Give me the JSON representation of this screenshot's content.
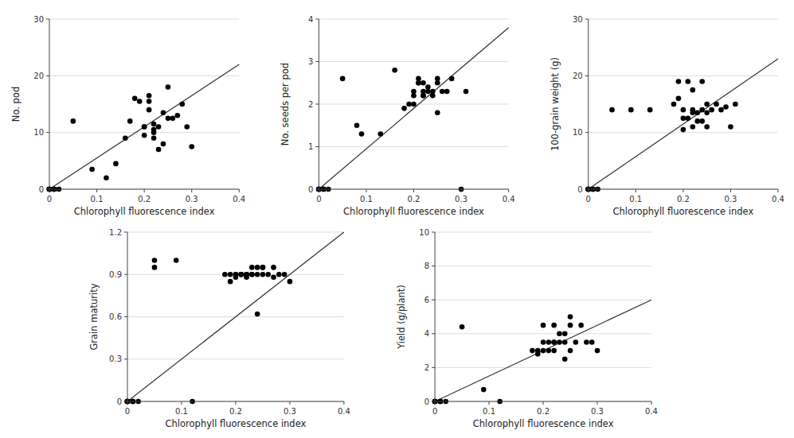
{
  "chart_data": [
    {
      "type": "scatter",
      "xlabel": "Chlorophyll fluorescence index",
      "ylabel": "No. pod",
      "xlim": [
        0,
        0.4
      ],
      "xticks": [
        0,
        0.1,
        0.2,
        0.3,
        0.4
      ],
      "ylim": [
        0,
        30
      ],
      "yticks": [
        0,
        10,
        20,
        30
      ],
      "grid": "y",
      "series": [
        {
          "type": "scatter",
          "color": "#000000",
          "x": [
            0.0,
            0.0,
            0.0,
            0.0,
            0.0,
            0.0,
            0.0,
            0.01,
            0.01,
            0.01,
            0.02,
            0.05,
            0.09,
            0.12,
            0.14,
            0.16,
            0.17,
            0.18,
            0.19,
            0.2,
            0.2,
            0.2,
            0.21,
            0.21,
            0.21,
            0.22,
            0.22,
            0.22,
            0.22,
            0.23,
            0.23,
            0.24,
            0.24,
            0.25,
            0.25,
            0.26,
            0.27,
            0.28,
            0.29,
            0.3
          ],
          "values": [
            0,
            0,
            0,
            0,
            0,
            0,
            0,
            0,
            0,
            0,
            0,
            12,
            3.5,
            2.0,
            4.5,
            9.0,
            12.0,
            16.0,
            15.5,
            11.0,
            11.0,
            9.5,
            14.0,
            15.5,
            16.5,
            10.5,
            10.0,
            11.5,
            9.0,
            11.0,
            7.0,
            8.0,
            13.5,
            18.0,
            12.5,
            12.5,
            13.0,
            15.0,
            11.0,
            7.5
          ]
        },
        {
          "type": "line",
          "color": "#333333",
          "x": [
            0,
            0.4
          ],
          "values": [
            0,
            22
          ]
        }
      ]
    },
    {
      "type": "scatter",
      "xlabel": "Chlorophyll fluorescence index",
      "ylabel": "No. seeds per pod",
      "xlim": [
        0,
        0.4
      ],
      "xticks": [
        0,
        0.1,
        0.2,
        0.3,
        0.4
      ],
      "ylim": [
        0,
        4.0
      ],
      "yticks": [
        0,
        1,
        2,
        3,
        4
      ],
      "grid": "y",
      "series": [
        {
          "type": "scatter",
          "color": "#000000",
          "x": [
            0.0,
            0.0,
            0.0,
            0.0,
            0.0,
            0.0,
            0.0,
            0.01,
            0.01,
            0.01,
            0.02,
            0.05,
            0.08,
            0.09,
            0.13,
            0.16,
            0.18,
            0.19,
            0.2,
            0.2,
            0.2,
            0.21,
            0.21,
            0.21,
            0.22,
            0.22,
            0.22,
            0.22,
            0.23,
            0.23,
            0.24,
            0.24,
            0.25,
            0.25,
            0.25,
            0.26,
            0.27,
            0.28,
            0.3,
            0.31
          ],
          "values": [
            0,
            0,
            0,
            0,
            0,
            0,
            0,
            0,
            0,
            0,
            0,
            2.6,
            1.5,
            1.3,
            1.3,
            2.8,
            1.9,
            2.0,
            2.3,
            2.2,
            2.0,
            2.5,
            2.6,
            2.5,
            2.2,
            2.5,
            2.3,
            2.2,
            2.3,
            2.4,
            2.3,
            2.2,
            2.5,
            2.6,
            1.8,
            2.3,
            2.3,
            2.6,
            0.0,
            2.3
          ]
        },
        {
          "type": "line",
          "color": "#333333",
          "x": [
            0,
            0.4
          ],
          "values": [
            0,
            3.8
          ]
        }
      ]
    },
    {
      "type": "scatter",
      "xlabel": "Chlorophyll fluorescence index",
      "ylabel": "100-grain weight (g)",
      "xlim": [
        0,
        0.4
      ],
      "xticks": [
        0,
        0.1,
        0.2,
        0.3,
        0.4
      ],
      "ylim": [
        0,
        30
      ],
      "yticks": [
        0,
        10,
        20,
        30
      ],
      "grid": "y",
      "series": [
        {
          "type": "scatter",
          "color": "#000000",
          "x": [
            0.0,
            0.0,
            0.0,
            0.0,
            0.0,
            0.0,
            0.0,
            0.01,
            0.01,
            0.01,
            0.02,
            0.05,
            0.09,
            0.13,
            0.18,
            0.19,
            0.19,
            0.2,
            0.2,
            0.2,
            0.21,
            0.21,
            0.22,
            0.22,
            0.22,
            0.22,
            0.23,
            0.23,
            0.24,
            0.24,
            0.24,
            0.25,
            0.25,
            0.25,
            0.26,
            0.27,
            0.28,
            0.29,
            0.3,
            0.31
          ],
          "values": [
            0,
            0,
            0,
            0,
            0,
            0,
            0,
            0,
            0,
            0,
            0,
            14,
            14,
            14,
            15.0,
            19.0,
            16.0,
            10.5,
            12.5,
            14.0,
            12.5,
            19.0,
            14.0,
            11.0,
            13.5,
            17.5,
            13.5,
            12.0,
            14.0,
            12.0,
            19.0,
            13.5,
            11.0,
            15.0,
            14.0,
            15.0,
            14.0,
            14.5,
            11.0,
            15.0
          ]
        },
        {
          "type": "line",
          "color": "#333333",
          "x": [
            0,
            0.4
          ],
          "values": [
            0,
            23
          ]
        }
      ]
    },
    {
      "type": "scatter",
      "xlabel": "Chlorophyll fluorescence index",
      "ylabel": "Grain maturity",
      "xlim": [
        0,
        0.4
      ],
      "xticks": [
        0,
        0.1,
        0.2,
        0.3,
        0.4
      ],
      "ylim": [
        0,
        1.2
      ],
      "yticks": [
        0,
        0.3,
        0.6,
        0.9,
        1.2
      ],
      "grid": "y",
      "series": [
        {
          "type": "scatter",
          "color": "#000000",
          "x": [
            0.0,
            0.0,
            0.0,
            0.0,
            0.0,
            0.0,
            0.0,
            0.01,
            0.01,
            0.01,
            0.02,
            0.05,
            0.05,
            0.09,
            0.12,
            0.18,
            0.19,
            0.19,
            0.2,
            0.2,
            0.2,
            0.21,
            0.21,
            0.21,
            0.22,
            0.22,
            0.22,
            0.22,
            0.23,
            0.23,
            0.23,
            0.24,
            0.24,
            0.24,
            0.25,
            0.25,
            0.25,
            0.26,
            0.27,
            0.27,
            0.28,
            0.29,
            0.3
          ],
          "values": [
            0,
            0,
            0,
            0,
            0,
            0,
            0,
            0,
            0,
            0,
            0,
            1.0,
            0.95,
            1.0,
            0.0,
            0.9,
            0.9,
            0.85,
            0.9,
            0.9,
            0.88,
            0.9,
            0.9,
            0.9,
            0.9,
            0.88,
            0.9,
            0.9,
            0.9,
            0.9,
            0.95,
            0.95,
            0.9,
            0.62,
            0.95,
            0.9,
            0.95,
            0.9,
            0.95,
            0.88,
            0.9,
            0.9,
            0.85
          ]
        },
        {
          "type": "line",
          "color": "#333333",
          "x": [
            0,
            0.4
          ],
          "values": [
            0,
            1.2
          ]
        }
      ]
    },
    {
      "type": "scatter",
      "xlabel": "Chlorophyll fluorescence index",
      "ylabel": "Yield (g/plant)",
      "xlim": [
        0,
        0.4
      ],
      "xticks": [
        0,
        0.1,
        0.2,
        0.3,
        0.4
      ],
      "ylim": [
        0,
        10
      ],
      "yticks": [
        0,
        2,
        4,
        6,
        8,
        10
      ],
      "grid": "y",
      "series": [
        {
          "type": "scatter",
          "color": "#000000",
          "x": [
            0.0,
            0.0,
            0.0,
            0.0,
            0.0,
            0.0,
            0.0,
            0.01,
            0.01,
            0.01,
            0.02,
            0.05,
            0.09,
            0.12,
            0.18,
            0.19,
            0.19,
            0.2,
            0.2,
            0.2,
            0.21,
            0.21,
            0.22,
            0.22,
            0.22,
            0.22,
            0.23,
            0.23,
            0.24,
            0.24,
            0.24,
            0.25,
            0.25,
            0.25,
            0.26,
            0.27,
            0.28,
            0.29,
            0.3
          ],
          "values": [
            0,
            0,
            0,
            0,
            0,
            0,
            0,
            0,
            0,
            0,
            0,
            4.4,
            0.7,
            0.0,
            3.0,
            2.8,
            3.0,
            3.5,
            3.0,
            4.5,
            3.5,
            3.0,
            3.5,
            4.5,
            3.5,
            3.0,
            3.5,
            4.0,
            4.0,
            2.5,
            3.5,
            3.0,
            4.5,
            5.0,
            3.5,
            4.5,
            3.5,
            3.5,
            3.0
          ]
        },
        {
          "type": "line",
          "color": "#333333",
          "x": [
            0,
            0.4
          ],
          "values": [
            0,
            6
          ]
        }
      ]
    }
  ]
}
